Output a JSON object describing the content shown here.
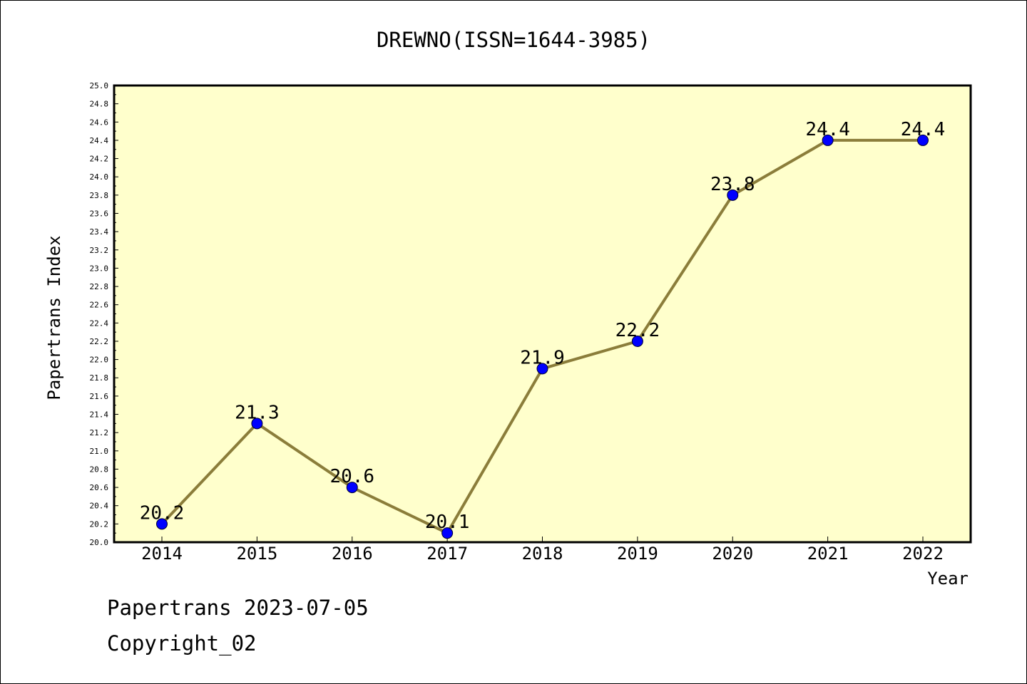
{
  "chart_data": {
    "type": "line",
    "title": "DREWNO(ISSN=1644-3985)",
    "xlabel": "Year",
    "ylabel": "Papertrans Index",
    "x": [
      "2014",
      "2015",
      "2016",
      "2017",
      "2018",
      "2019",
      "2020",
      "2021",
      "2022"
    ],
    "series": [
      {
        "values": [
          20.2,
          21.3,
          20.6,
          20.1,
          21.9,
          22.2,
          23.8,
          24.4,
          24.4
        ]
      }
    ],
    "data_labels": [
      "20.2",
      "21.3",
      "20.6",
      "20.1",
      "21.9",
      "22.2",
      "23.8",
      "24.4",
      "24.4"
    ],
    "ylim": [
      20.0,
      25.0
    ],
    "yticks": [
      "20.0",
      "20.2",
      "20.4",
      "20.6",
      "20.8",
      "21.0",
      "21.2",
      "21.4",
      "21.6",
      "21.8",
      "22.0",
      "22.2",
      "22.4",
      "22.6",
      "22.8",
      "23.0",
      "23.2",
      "23.4",
      "23.6",
      "23.8",
      "24.0",
      "24.2",
      "24.4",
      "24.6",
      "24.8",
      "25.0"
    ],
    "grid": false,
    "legend": "none",
    "colors": {
      "plot_bg": "#ffffcc",
      "line": "#8b7d3a",
      "marker": "#0000ff"
    }
  },
  "footer": {
    "line1": "Papertrans 2023-07-05",
    "line2": "Copyright_02"
  }
}
